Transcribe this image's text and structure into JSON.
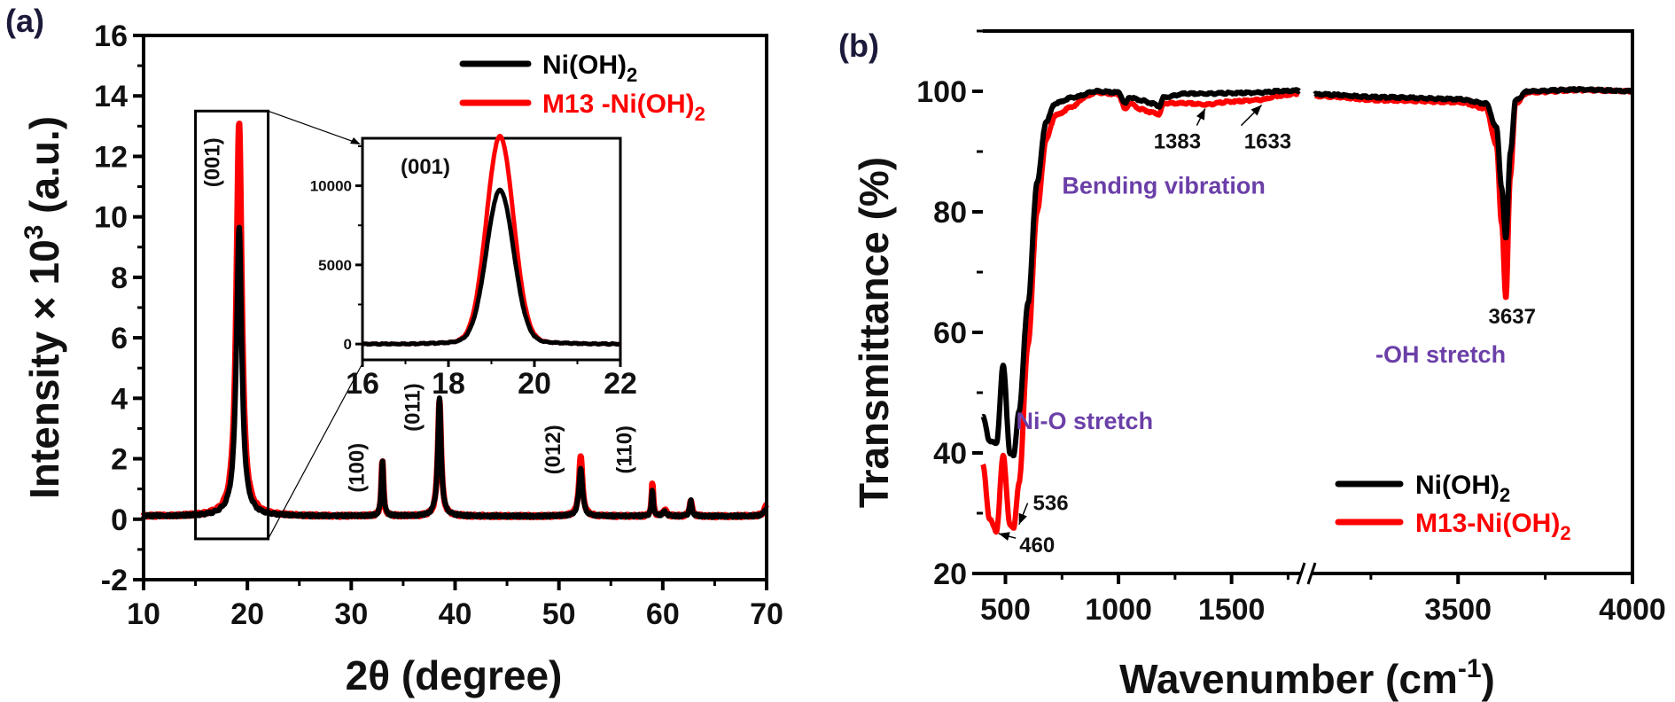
{
  "colors": {
    "series_black": "#000000",
    "series_red": "#ff0000",
    "annotation_purple": "#6b3fa8",
    "panel_label": "#1c1a3a"
  },
  "chart_data": [
    {
      "panel": "(a)",
      "type": "line",
      "title": "",
      "xlabel": "2θ (degree)",
      "ylabel_main": "Intensity × 10",
      "ylabel_sup": "3",
      "ylabel_unit": " (a.u.)",
      "xlim": [
        10,
        70
      ],
      "ylim": [
        -2,
        16
      ],
      "xticks": [
        10,
        20,
        30,
        40,
        50,
        60,
        70
      ],
      "yticks": [
        -2,
        0,
        2,
        4,
        6,
        8,
        10,
        12,
        14,
        16
      ],
      "grid": false,
      "legend_position": "top-right",
      "legend": [
        {
          "name": "Ni(OH)",
          "sub": "2",
          "color": "#000000"
        },
        {
          "name": "M13 -Ni(OH)",
          "sub": "2",
          "color": "#ff0000"
        }
      ],
      "baseline": 0.1,
      "series": [
        {
          "name": "M13 -Ni(OH)2",
          "color": "#ff0000",
          "peaks": [
            {
              "x": 19.2,
              "height": 13.0,
              "width": 0.45
            },
            {
              "x": 33.0,
              "height": 1.8,
              "width": 0.18
            },
            {
              "x": 38.5,
              "height": 3.85,
              "width": 0.28
            },
            {
              "x": 52.1,
              "height": 1.95,
              "width": 0.3
            },
            {
              "x": 59.0,
              "height": 1.05,
              "width": 0.15
            },
            {
              "x": 60.2,
              "height": 0.2,
              "width": 0.3
            },
            {
              "x": 62.7,
              "height": 0.55,
              "width": 0.2
            },
            {
              "x": 70.0,
              "height": 0.35,
              "width": 0.4
            }
          ]
        },
        {
          "name": "Ni(OH)2",
          "color": "#000000",
          "peaks": [
            {
              "x": 19.2,
              "height": 9.6,
              "width": 0.45
            },
            {
              "x": 33.0,
              "height": 1.85,
              "width": 0.18
            },
            {
              "x": 38.5,
              "height": 3.9,
              "width": 0.28
            },
            {
              "x": 52.1,
              "height": 1.6,
              "width": 0.3
            },
            {
              "x": 59.0,
              "height": 0.85,
              "width": 0.15
            },
            {
              "x": 60.2,
              "height": 0.15,
              "width": 0.3
            },
            {
              "x": 62.7,
              "height": 0.5,
              "width": 0.2
            },
            {
              "x": 70.0,
              "height": 0.25,
              "width": 0.4
            }
          ]
        }
      ],
      "peak_labels": [
        {
          "text": "(001)",
          "x": 17.3,
          "y": 11.8
        },
        {
          "text": "(100)",
          "x": 31.2,
          "y": 1.7
        },
        {
          "text": "(011)",
          "x": 36.6,
          "y": 3.7
        },
        {
          "text": "(012)",
          "x": 50.1,
          "y": 2.3
        },
        {
          "text": "(110)",
          "x": 57.0,
          "y": 2.3
        }
      ],
      "zoom_box": {
        "x": [
          15,
          22
        ],
        "y": [
          -0.65,
          13.5
        ]
      },
      "inset": {
        "xlim": [
          16,
          22
        ],
        "ylim": [
          -1000,
          13000
        ],
        "xticks": [
          16,
          18,
          20,
          22
        ],
        "yticks": [
          0,
          5000,
          10000
        ],
        "label": "(001)",
        "series": [
          {
            "name": "M13 -Ni(OH)2",
            "color": "#ff0000",
            "peak_x": 19.2,
            "peak_height": 12900,
            "width": 0.42
          },
          {
            "name": "Ni(OH)2",
            "color": "#000000",
            "peak_x": 19.2,
            "peak_height": 9500,
            "width": 0.42
          }
        ]
      }
    },
    {
      "panel": "(b)",
      "type": "line",
      "title": "",
      "xlabel_main": "Wavenumber (cm",
      "xlabel_sup": "-1",
      "xlabel_end": ")",
      "ylabel": "Transmittance (%)",
      "xlim_segments": [
        [
          400,
          1815
        ],
        [
          3075,
          4000
        ]
      ],
      "axis_break": true,
      "ylim": [
        20,
        110
      ],
      "xticks": [
        500,
        1000,
        1500,
        3500,
        4000
      ],
      "yticks": [
        20,
        40,
        60,
        80,
        100
      ],
      "grid": false,
      "legend_position": "bottom-right",
      "legend": [
        {
          "name": "Ni(OH)",
          "sub": "2",
          "color": "#000000"
        },
        {
          "name": "M13-Ni(OH)",
          "sub": "2",
          "color": "#ff0000"
        }
      ],
      "series": [
        {
          "name": "Ni(OH)2",
          "color": "#000000",
          "points_left": [
            [
              400,
              46
            ],
            [
              430,
              42
            ],
            [
              460,
              41.5
            ],
            [
              490,
              54.5
            ],
            [
              520,
              40
            ],
            [
              536,
              39.5
            ],
            [
              560,
              47
            ],
            [
              600,
              65
            ],
            [
              640,
              85
            ],
            [
              680,
              95
            ],
            [
              720,
              98
            ],
            [
              800,
              99
            ],
            [
              900,
              100
            ],
            [
              1000,
              99.8
            ],
            [
              1030,
              98
            ],
            [
              1050,
              99
            ],
            [
              1100,
              98.5
            ],
            [
              1150,
              98
            ],
            [
              1180,
              97.5
            ],
            [
              1200,
              99
            ],
            [
              1300,
              99.6
            ],
            [
              1383,
              99.6
            ],
            [
              1500,
              99.7
            ],
            [
              1633,
              99.8
            ],
            [
              1700,
              100
            ],
            [
              1800,
              100.1
            ]
          ],
          "points_right": [
            [
              3090,
              99.5
            ],
            [
              3300,
              99
            ],
            [
              3500,
              98.7
            ],
            [
              3580,
              98
            ],
            [
              3610,
              94
            ],
            [
              3625,
              84
            ],
            [
              3637,
              75.5
            ],
            [
              3650,
              90
            ],
            [
              3665,
              98.5
            ],
            [
              3700,
              100
            ],
            [
              3850,
              100.3
            ],
            [
              4000,
              100
            ]
          ]
        },
        {
          "name": "M13-Ni(OH)2",
          "color": "#ff0000",
          "points_left": [
            [
              400,
              38
            ],
            [
              430,
              29
            ],
            [
              460,
              27
            ],
            [
              490,
              39.5
            ],
            [
              520,
              28
            ],
            [
              536,
              27.5
            ],
            [
              560,
              35
            ],
            [
              600,
              58
            ],
            [
              640,
              80
            ],
            [
              680,
              92
            ],
            [
              720,
              96
            ],
            [
              800,
              97.5
            ],
            [
              850,
              99
            ],
            [
              900,
              99.8
            ],
            [
              1000,
              99.5
            ],
            [
              1030,
              97
            ],
            [
              1050,
              98
            ],
            [
              1100,
              97
            ],
            [
              1150,
              96.5
            ],
            [
              1180,
              96.2
            ],
            [
              1200,
              98
            ],
            [
              1300,
              98
            ],
            [
              1383,
              97.8
            ],
            [
              1500,
              98.3
            ],
            [
              1633,
              98.6
            ],
            [
              1700,
              99.2
            ],
            [
              1800,
              99.6
            ]
          ],
          "points_right": [
            [
              3090,
              99.2
            ],
            [
              3300,
              98.5
            ],
            [
              3500,
              98.2
            ],
            [
              3580,
              97.2
            ],
            [
              3610,
              91
            ],
            [
              3625,
              78
            ],
            [
              3637,
              65.5
            ],
            [
              3650,
              86
            ],
            [
              3665,
              98
            ],
            [
              3700,
              99.8
            ],
            [
              3850,
              100.2
            ],
            [
              4000,
              100
            ]
          ]
        }
      ],
      "annotations": [
        {
          "text": "1383",
          "x": 1260,
          "y": 90.5,
          "arrow_to": [
            1383,
            98
          ]
        },
        {
          "text": "1633",
          "x": 1660,
          "y": 90.5,
          "arrow_to": [
            1633,
            98.6
          ]
        },
        {
          "text": "3637",
          "x": 3655,
          "y": 61.5
        },
        {
          "text": "536",
          "x": 700,
          "y": 30.5,
          "arrow_to": [
            560,
            29
          ]
        },
        {
          "text": "460",
          "x": 640,
          "y": 23.5,
          "arrow_to": [
            470,
            27.5
          ]
        }
      ],
      "region_labels": [
        {
          "text": "Bending vibration",
          "x": 1200,
          "y": 83
        },
        {
          "text": "-OH stretch",
          "x": 3450,
          "y": 55
        },
        {
          "text": "Ni-O stretch",
          "x": 850,
          "y": 44
        }
      ]
    }
  ]
}
